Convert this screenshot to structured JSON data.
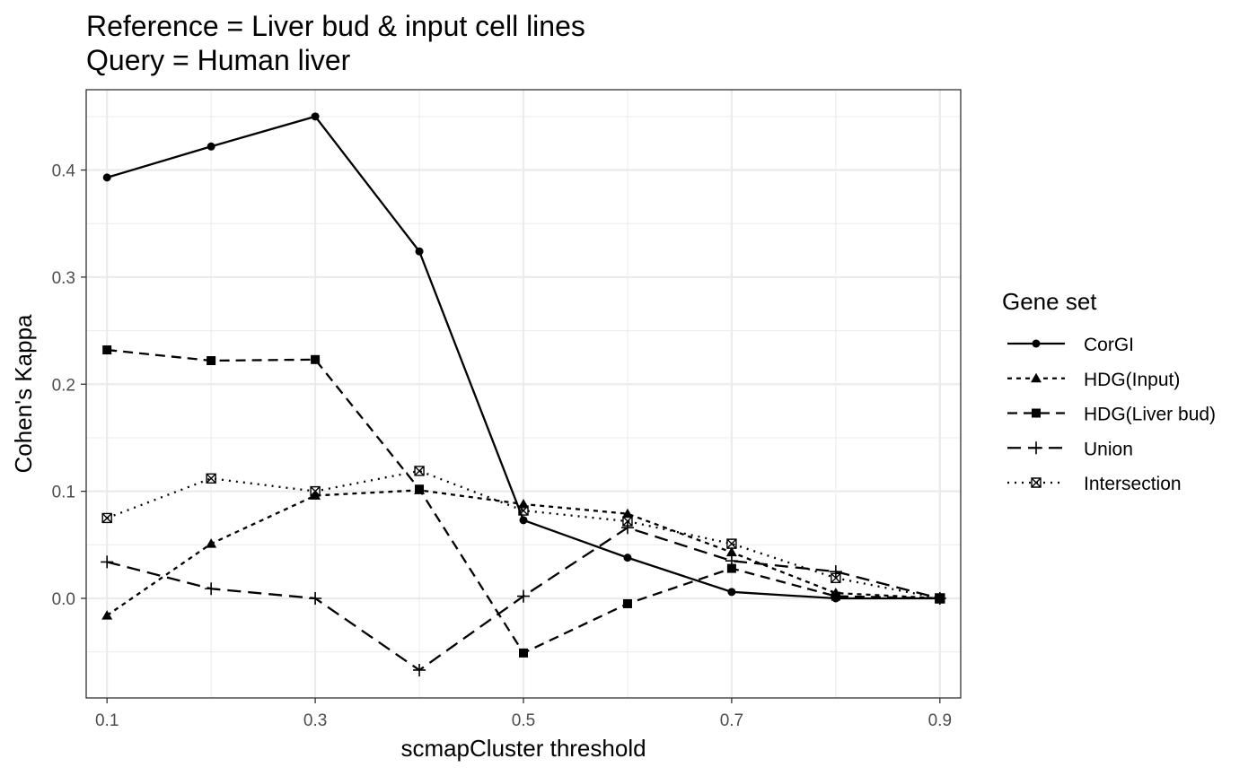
{
  "chart_data": {
    "type": "line",
    "title_lines": [
      "Reference = Liver bud & input cell lines",
      "Query = Human liver"
    ],
    "xlabel": "scmapCluster threshold",
    "ylabel": "Cohen's Kappa",
    "x": [
      0.1,
      0.2,
      0.3,
      0.4,
      0.5,
      0.6,
      0.7,
      0.8,
      0.9
    ],
    "xticks": [
      0.1,
      0.3,
      0.5,
      0.7,
      0.9
    ],
    "xtick_labels": [
      "0.1",
      "0.3",
      "0.5",
      "0.7",
      "0.9"
    ],
    "yticks": [
      0.0,
      0.1,
      0.2,
      0.3,
      0.4
    ],
    "ytick_labels": [
      "0.0",
      "0.1",
      "0.2",
      "0.3",
      "0.4"
    ],
    "xlim": [
      0.08,
      0.92
    ],
    "ylim": [
      -0.093,
      0.475
    ],
    "grid": true,
    "legend": {
      "title": "Gene set",
      "position": "right"
    },
    "series": [
      {
        "name": "CorGI",
        "linetype": "solid",
        "marker": "circle",
        "values": [
          0.393,
          0.422,
          0.45,
          0.324,
          0.073,
          0.038,
          0.006,
          0.0,
          0.0
        ]
      },
      {
        "name": "HDG(Input)",
        "linetype": "dotted",
        "marker": "triangle",
        "values": [
          -0.016,
          0.051,
          0.096,
          0.101,
          0.088,
          0.079,
          0.043,
          0.005,
          0.0
        ]
      },
      {
        "name": "HDG(Liver bud)",
        "linetype": "dashed",
        "marker": "square",
        "values": [
          0.232,
          0.222,
          0.223,
          0.102,
          -0.051,
          -0.005,
          0.028,
          0.002,
          0.0
        ]
      },
      {
        "name": "Union",
        "linetype": "longdash",
        "marker": "plus",
        "values": [
          0.034,
          0.009,
          0.0,
          -0.067,
          0.002,
          0.066,
          0.035,
          0.025,
          0.0
        ]
      },
      {
        "name": "Intersection",
        "linetype": "dotted-fine",
        "marker": "square-x",
        "values": [
          0.075,
          0.112,
          0.1,
          0.119,
          0.082,
          0.072,
          0.051,
          0.019,
          0.0
        ]
      }
    ]
  }
}
